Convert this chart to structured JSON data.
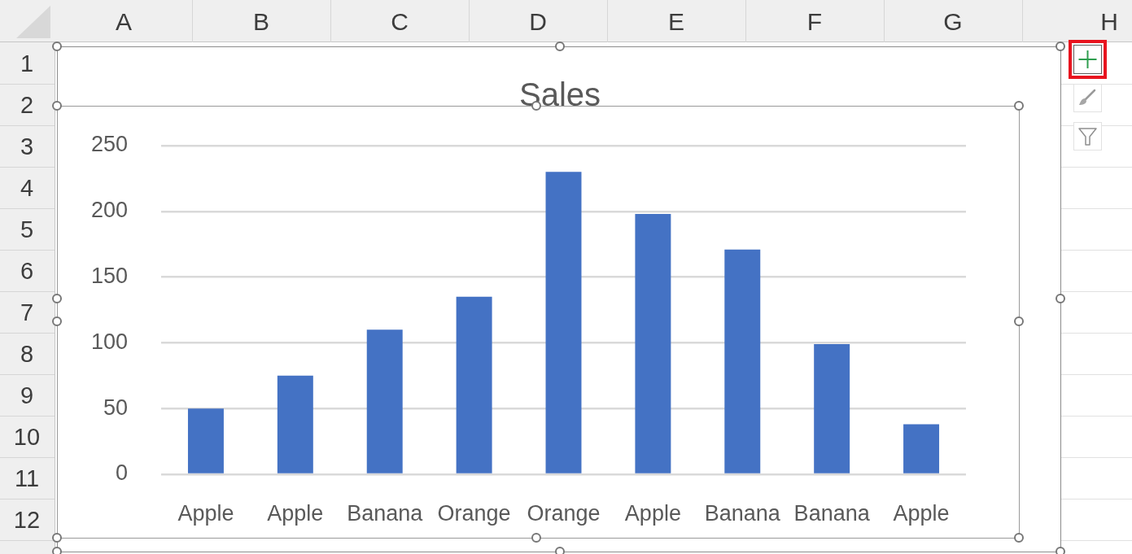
{
  "chart_data": {
    "type": "bar",
    "title": "Sales",
    "categories": [
      "Apple",
      "Apple",
      "Banana",
      "Orange",
      "Orange",
      "Apple",
      "Banana",
      "Banana",
      "Apple"
    ],
    "values": [
      50,
      75,
      110,
      135,
      230,
      198,
      171,
      99,
      38
    ],
    "color": "#4472c4",
    "ylim": [
      0,
      250
    ],
    "yticks": [
      0,
      50,
      100,
      150,
      200,
      250
    ],
    "grid": "y",
    "annotations": [
      "A",
      "B",
      "C",
      "D",
      "E",
      "F",
      "G",
      "H",
      "1",
      "2",
      "3",
      "4",
      "5",
      "6",
      "7",
      "8",
      "9",
      "10",
      "11",
      "12"
    ]
  }
}
